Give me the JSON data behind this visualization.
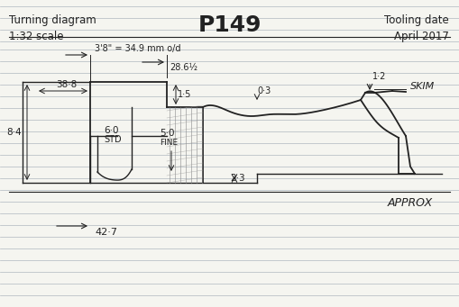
{
  "title": "P149",
  "subtitle_left": "Turning diagram\n1:32 scale",
  "subtitle_right": "Tooling date\nApril 2017",
  "bg_color": "#f5f5f0",
  "line_color": "#222222",
  "hatch_color": "#555555",
  "annotations": {
    "dim_od": "3'8\" = 34.9 mm o/d",
    "dim_286": "28.6½",
    "dim_12": "1·2",
    "dim_15": "1·5",
    "dim_03": "0·3",
    "dim_84": "8·4",
    "dim_388": "38·8",
    "dim_60": "6·0",
    "dim_std": "STD",
    "dim_50": "5·0",
    "dim_fine": "FINE",
    "dim_23": "2·3",
    "dim_427": "42·7",
    "skim": "SKIM",
    "approx": "APPROX"
  }
}
